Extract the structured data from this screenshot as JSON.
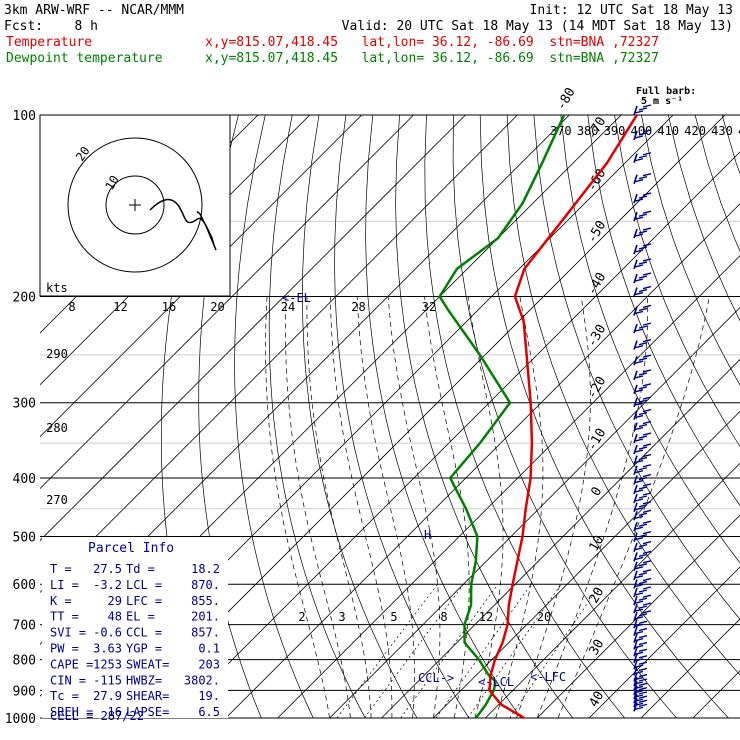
{
  "header": {
    "line1_left": "3km ARW-WRF -- NCAR/MMM",
    "line1_right": "Init: 12 UTC Sat 18 May 13",
    "line2_left": "Fcst:    8 h",
    "line2_right": "Valid: 20 UTC Sat 18 May 13 (14 MDT Sat 18 May 13)",
    "line3_label": "Temperature",
    "line3_info": "x,y=815.07,418.45   lat,lon= 36.12, -86.69  stn=BNA ,72327",
    "line4_label": "Dewpoint temperature",
    "line4_info": "x,y=815.07,418.45   lat,lon= 36.12, -86.69  stn=BNA ,72327"
  },
  "colors": {
    "temperature": "#e00000",
    "dewpoint": "#008000",
    "annotation": "#000090",
    "grid": "#000000"
  },
  "chart_data": {
    "type": "line",
    "diagram": "skew-T log-p",
    "y_axis": {
      "unit": "hPa",
      "scale": "log",
      "range": [
        1000,
        100
      ],
      "ticks": [
        100,
        200,
        300,
        400,
        500,
        600,
        700,
        800,
        900,
        1000
      ]
    },
    "isotherm_labels": [
      -80,
      -70,
      -60,
      -50,
      -40,
      -30,
      -20,
      -10,
      0,
      10,
      20,
      30,
      40
    ],
    "isotherm_label_text": [
      "-80",
      "-70",
      "-60",
      "-50",
      "-40",
      "-30",
      "-20",
      "-10",
      "0",
      "10",
      "20",
      "30",
      "40"
    ],
    "theta_labels": [
      "370",
      "380",
      "390",
      "400",
      "410",
      "420",
      "430",
      "440"
    ],
    "theta_lower_labels": [
      "290",
      "280",
      "270"
    ],
    "mixing_ratio_labels_upper": [
      "8",
      "12",
      "16",
      "20",
      "24",
      "28",
      "32"
    ],
    "mixing_ratio_labels_lower": [
      "2",
      "3",
      "5",
      "8",
      "12",
      "20"
    ],
    "series": [
      {
        "name": "Temperature",
        "points": [
          [
            1000,
            27.5
          ],
          [
            950,
            20.5
          ],
          [
            925,
            18.0
          ],
          [
            900,
            15.5
          ],
          [
            850,
            12.8
          ],
          [
            800,
            10.6
          ],
          [
            750,
            8.8
          ],
          [
            700,
            6.3
          ],
          [
            650,
            2.8
          ],
          [
            600,
            -0.5
          ],
          [
            550,
            -4.0
          ],
          [
            500,
            -7.8
          ],
          [
            450,
            -12.5
          ],
          [
            400,
            -17.5
          ],
          [
            350,
            -24.0
          ],
          [
            300,
            -32.0
          ],
          [
            250,
            -42.0
          ],
          [
            220,
            -49.0
          ],
          [
            200,
            -55.5
          ],
          [
            180,
            -59.0
          ],
          [
            150,
            -61.0
          ],
          [
            120,
            -63.5
          ],
          [
            100,
            -67.0
          ]
        ]
      },
      {
        "name": "Dewpoint temperature",
        "points": [
          [
            1000,
            18.2
          ],
          [
            950,
            17.5
          ],
          [
            900,
            16.3
          ],
          [
            870,
            15.0
          ],
          [
            850,
            12.5
          ],
          [
            800,
            7.5
          ],
          [
            750,
            1.5
          ],
          [
            700,
            -2.0
          ],
          [
            650,
            -4.5
          ],
          [
            600,
            -8.5
          ],
          [
            550,
            -12.0
          ],
          [
            500,
            -16.5
          ],
          [
            450,
            -24.0
          ],
          [
            400,
            -33.0
          ],
          [
            350,
            -34.0
          ],
          [
            300,
            -36.0
          ],
          [
            250,
            -51.0
          ],
          [
            210,
            -66.0
          ],
          [
            200,
            -70.0
          ],
          [
            180,
            -72.0
          ],
          [
            160,
            -70.0
          ],
          [
            140,
            -72.0
          ],
          [
            120,
            -76.0
          ],
          [
            100,
            -81.0
          ]
        ]
      }
    ],
    "levels_marked": {
      "LCL": "<-LCL",
      "LFC": "<-LFC",
      "CCL": "CCL->",
      "EL": "<-EL",
      "H": "H"
    },
    "hodograph": {
      "rings_label": "kts",
      "ring_labels": [
        "10",
        "20"
      ]
    },
    "wind_barbs_label": "Full barb:",
    "wind_barbs_unit": "5 m s⁻¹",
    "wind_barbs_pressures": [
      100,
      110,
      120,
      130,
      140,
      150,
      160,
      170,
      180,
      190,
      200,
      215,
      230,
      245,
      260,
      275,
      290,
      305,
      320,
      335,
      350,
      365,
      380,
      395,
      410,
      425,
      440,
      455,
      470,
      490,
      510,
      530,
      550,
      570,
      590,
      610,
      630,
      650,
      670,
      690,
      710,
      730,
      750,
      770,
      790,
      810,
      830,
      850,
      870,
      885,
      900,
      915,
      930,
      945,
      960,
      975
    ]
  },
  "parcel_info": {
    "title": "Parcel Info",
    "rows": [
      [
        "T  =",
        "27.5",
        "Td =",
        "18.2"
      ],
      [
        "LI =",
        "-3.2",
        "LCL =",
        "870."
      ],
      [
        "K  =",
        "29",
        "LFC =",
        "855."
      ],
      [
        "TT =",
        "48",
        "EL =",
        "201."
      ],
      [
        "SVI =",
        "-0.6",
        "CCL =",
        "857."
      ],
      [
        "PW =",
        "3.63",
        "YGP =",
        "0.1"
      ],
      [
        "CAPE =",
        "1253",
        "SWEAT=",
        "203"
      ],
      [
        "CIN =",
        "-115",
        "HWBZ=",
        "3802."
      ],
      [
        "Tc =",
        "27.9",
        "SHEAR=",
        "19."
      ],
      [
        "SREH =",
        "16",
        "LAPSE=",
        "6.5"
      ]
    ],
    "cell": "CELL = 287/22"
  }
}
